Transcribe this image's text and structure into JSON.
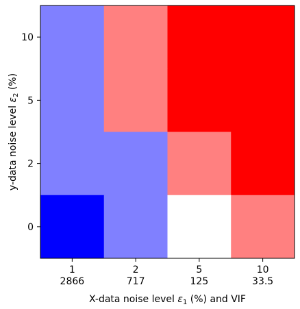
{
  "chart_data": {
    "type": "heatmap",
    "x_categories": [
      "1",
      "2",
      "5",
      "10"
    ],
    "x_tick_secondary": [
      "2866",
      "717",
      "125",
      "33.5"
    ],
    "y_categories": [
      "0",
      "2",
      "5",
      "10"
    ],
    "xlabel": {
      "text": "X-data noise level ",
      "symbol": "ε",
      "sub": "1",
      "tail": " (%) and VIF"
    },
    "ylabel": {
      "text": "y-data noise level ",
      "symbol": "ε",
      "sub": "2",
      "tail": " (%)"
    },
    "cells": [
      [
        0.5,
        1.5,
        2.0,
        2.0
      ],
      [
        0.5,
        1.5,
        2.0,
        2.0
      ],
      [
        0.5,
        0.5,
        1.5,
        2.0
      ],
      [
        0.0,
        0.5,
        1.0,
        1.5
      ]
    ],
    "color_scale": {
      "low": "#0000ff",
      "mid": "#ffffff",
      "high": "#ff0000",
      "range": [
        0,
        2
      ]
    },
    "grid": false,
    "legend": "none"
  }
}
